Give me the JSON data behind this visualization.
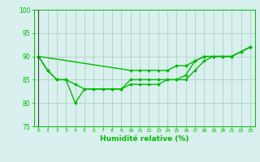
{
  "x": [
    0,
    1,
    2,
    3,
    4,
    5,
    6,
    7,
    8,
    9,
    10,
    11,
    12,
    13,
    14,
    15,
    16,
    17,
    18,
    19,
    20,
    21,
    22,
    23
  ],
  "line1": [
    90,
    87,
    85,
    85,
    84,
    83,
    83,
    83,
    83,
    83,
    85,
    85,
    85,
    85,
    85,
    85,
    85,
    87,
    89,
    90,
    90,
    90,
    91,
    92
  ],
  "line2": [
    90,
    87,
    85,
    85,
    80,
    83,
    83,
    83,
    83,
    83,
    84,
    84,
    84,
    84,
    85,
    85,
    86,
    89,
    90,
    90,
    90,
    90,
    91,
    92
  ],
  "line3": [
    90,
    null,
    null,
    null,
    null,
    null,
    null,
    null,
    null,
    null,
    87,
    87,
    87,
    87,
    87,
    88,
    88,
    89,
    90,
    90,
    90,
    90,
    91,
    92
  ],
  "xlabel": "Humidité relative (%)",
  "ylim": [
    75,
    100
  ],
  "xlim": [
    -0.5,
    23.5
  ],
  "yticks": [
    75,
    80,
    85,
    90,
    95,
    100
  ],
  "xticks": [
    0,
    1,
    2,
    3,
    4,
    5,
    6,
    7,
    8,
    9,
    10,
    11,
    12,
    13,
    14,
    15,
    16,
    17,
    18,
    19,
    20,
    21,
    22,
    23
  ],
  "line_color": "#00bb00",
  "bg_color": "#d8f0ee",
  "grid_color": "#aaccbb",
  "marker": "D",
  "marker_size": 1.8,
  "line_width": 1.0
}
